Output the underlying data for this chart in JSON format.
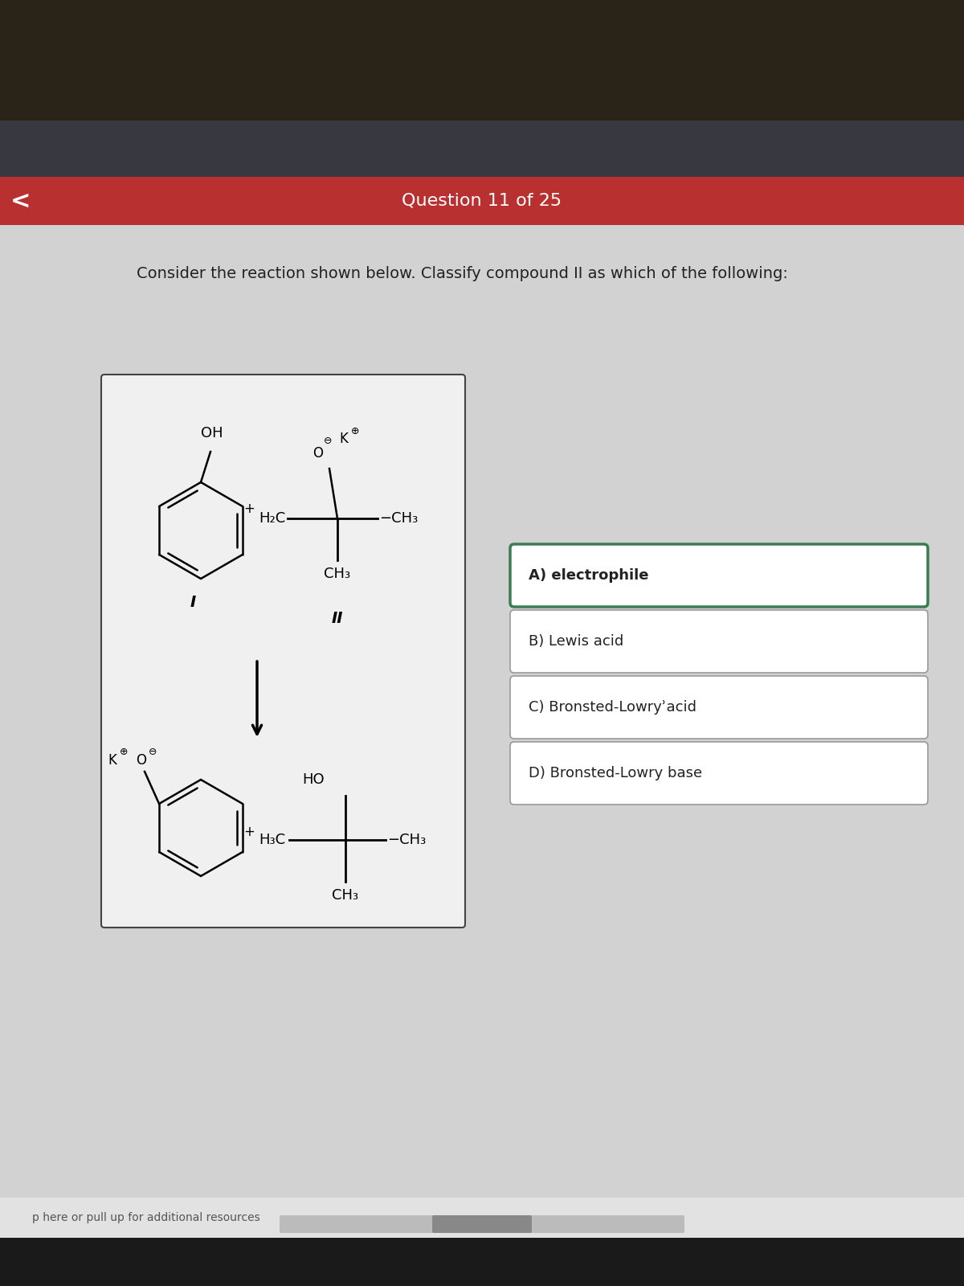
{
  "title_bar_color": "#b83030",
  "title_bar_text": "Question 11 of 25",
  "title_bar_text_color": "#ffffff",
  "bg_color_dark_top": "#2a2520",
  "bg_color_mid_dark": "#3a3a45",
  "bg_color_main": "#d0d0d0",
  "bg_color_bottom": "#1a1a1a",
  "question_text": "Consider the reaction shown below. Classify compound II as which of the following:",
  "question_text_color": "#222222",
  "reaction_box_bg": "#f0f0f0",
  "reaction_box_border": "#444444",
  "answer_box_selected_bg": "#ffffff",
  "answer_box_selected_border": "#3a7d50",
  "answer_box_unselected_bg": "#ffffff",
  "answer_box_unselected_border": "#999999",
  "answer_A": "A) electrophile",
  "answer_B": "B) Lewis acid",
  "answer_C": "C) Bronsted-Lowryʾacid",
  "answer_D": "D) Bronsted-Lowry base",
  "footer_text": "p here or pull up for additional resources",
  "footer_text_color": "#555555",
  "back_arrow": "<"
}
